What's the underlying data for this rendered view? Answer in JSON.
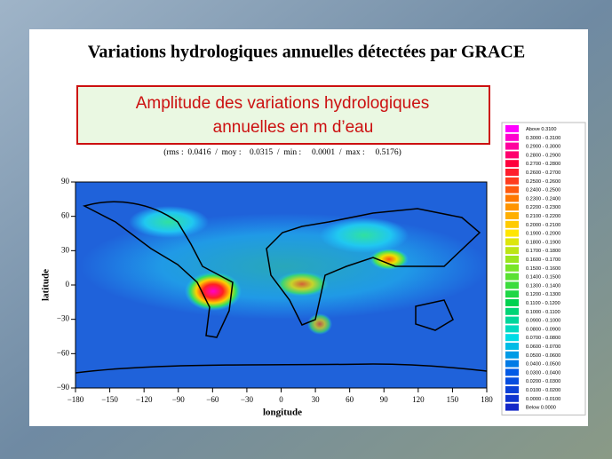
{
  "title": "Variations hydrologiques annuelles détectées par GRACE",
  "subtitle_box": {
    "line1": "Amplitude des variations hydrologiques",
    "line2": "annuelles en m d’eau"
  },
  "stats": "(rms :  0.0416  /  moy :    0.0315  /  min :     0.0001  /  max :     0.5176)",
  "map": {
    "y_label": "latitude",
    "x_label": "longitude",
    "yticks": [
      "90",
      "60",
      "30",
      "0",
      "−30",
      "−60",
      "−90"
    ],
    "xticks": [
      "−180",
      "−150",
      "−120",
      "−90",
      "−60",
      "−30",
      "0",
      "30",
      "60",
      "90",
      "120",
      "150",
      "180"
    ]
  },
  "legend": [
    "Above    0.3100",
    "0.3000 - 0.3100",
    "0.2900 - 0.3000",
    "0.2800 - 0.2900",
    "0.2700 - 0.2800",
    "0.2600 - 0.2700",
    "0.2500 - 0.2600",
    "0.2400 - 0.2500",
    "0.2300 - 0.2400",
    "0.2200 - 0.2300",
    "0.2100 - 0.2200",
    "0.2000 - 0.2100",
    "0.1900 - 0.2000",
    "0.1800 - 0.1900",
    "0.1700 - 0.1800",
    "0.1600 - 0.1700",
    "0.1500 - 0.1600",
    "0.1400 - 0.1500",
    "0.1300 - 0.1400",
    "0.1200 - 0.1300",
    "0.1100 - 0.1200",
    "0.1000 - 0.1100",
    "0.0900 - 0.1000",
    "0.0800 - 0.0900",
    "0.0700 - 0.0800",
    "0.0600 - 0.0700",
    "0.0500 - 0.0600",
    "0.0400 - 0.0500",
    "0.0300 - 0.0400",
    "0.0200 - 0.0300",
    "0.0100 - 0.0200",
    "0.0000 - 0.0100",
    "Below    0.0000"
  ]
}
